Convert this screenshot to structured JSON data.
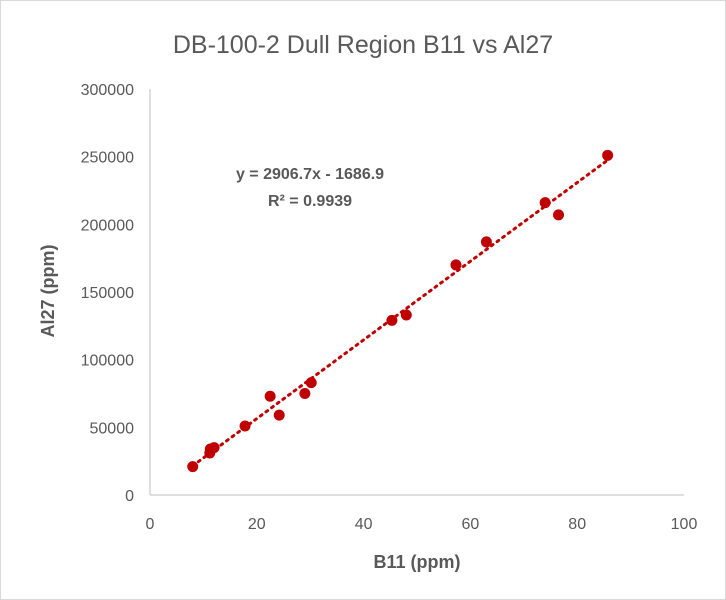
{
  "chart_data": {
    "type": "scatter",
    "title": "DB-100-2 Dull Region B11 vs Al27",
    "xlabel": "B11 (ppm)",
    "ylabel": "Al27 (ppm)",
    "xlim": [
      0,
      100
    ],
    "ylim": [
      0,
      300000
    ],
    "x_ticks": [
      "0",
      "20",
      "40",
      "60",
      "80",
      "100"
    ],
    "y_ticks": [
      "0",
      "50000",
      "100000",
      "150000",
      "200000",
      "250000",
      "300000"
    ],
    "grid": false,
    "legend": "none",
    "marker_color": "#C00000",
    "trendline_color": "#C00000",
    "points": [
      {
        "x": 8.0,
        "y": 21000
      },
      {
        "x": 11.2,
        "y": 31000
      },
      {
        "x": 11.3,
        "y": 34000
      },
      {
        "x": 12.0,
        "y": 35000
      },
      {
        "x": 17.8,
        "y": 51000
      },
      {
        "x": 22.5,
        "y": 73000
      },
      {
        "x": 24.2,
        "y": 59000
      },
      {
        "x": 29.0,
        "y": 75000
      },
      {
        "x": 30.2,
        "y": 83000
      },
      {
        "x": 45.3,
        "y": 129000
      },
      {
        "x": 48.0,
        "y": 133000
      },
      {
        "x": 57.3,
        "y": 170000
      },
      {
        "x": 63.0,
        "y": 187000
      },
      {
        "x": 74.0,
        "y": 216000
      },
      {
        "x": 76.5,
        "y": 207000
      },
      {
        "x": 85.7,
        "y": 251000
      }
    ],
    "trendline": {
      "type": "linear",
      "slope": 2906.7,
      "intercept": -1686.9,
      "x_range": [
        8.0,
        85.7
      ],
      "equation": "y = 2906.7x - 1686.9",
      "r_squared": "R² = 0.9939"
    }
  }
}
